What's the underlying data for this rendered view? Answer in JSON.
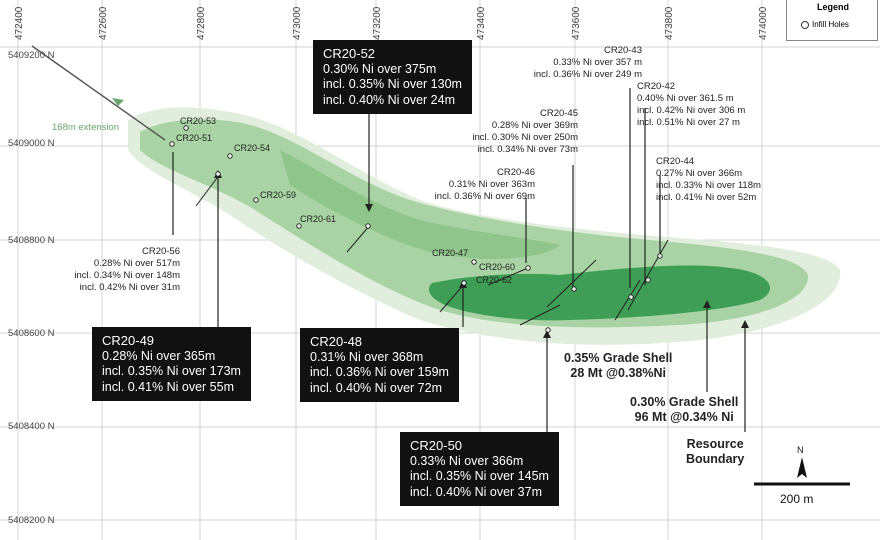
{
  "grid": {
    "x_labels": [
      "472400",
      "472600",
      "472800",
      "473000",
      "473200",
      "473400",
      "473600",
      "473800",
      "474000"
    ],
    "y_labels": [
      "5409200 N",
      "5409000 N",
      "5408800 N",
      "5408600 N",
      "5408400 N",
      "5408200 N"
    ]
  },
  "legend": {
    "title": "Legend",
    "item": "Infill Holes"
  },
  "extension_label": "168m extension",
  "holes": [
    "CR20-53",
    "CR20-51",
    "CR20-54",
    "CR20-59",
    "CR20-61",
    "CR20-47",
    "CR20-60",
    "CR20-62"
  ],
  "annotations": {
    "cr20_56": [
      "CR20-56",
      "0.28% Ni over 517m",
      "incl. 0.34% Ni over 148m",
      "incl. 0.42% Ni over 31m"
    ],
    "cr20_46": [
      "CR20-46",
      "0.31% Ni over 363m",
      "incl. 0.36% Ni over 69m"
    ],
    "cr20_45": [
      "CR20-45",
      "0.28% Ni over 369m",
      "incl. 0.30% Ni over 250m",
      "incl. 0.34% Ni over 73m"
    ],
    "cr20_43": [
      "CR20-43",
      "0.33% Ni over 357 m",
      "incl. 0.36% Ni over 249 m"
    ],
    "cr20_42": [
      "CR20-42",
      "0.40% Ni over 361.5 m",
      "incl. 0.42% Ni over 306 m",
      "incl. 0.51% Ni over 27 m"
    ],
    "cr20_44": [
      "CR20-44",
      "0.27% Ni over 366m",
      "incl. 0.33% Ni over 118m",
      "incl. 0.41% Ni over 52m"
    ]
  },
  "boxes": {
    "cr20_52": [
      "CR20-52",
      "0.30% Ni over 375m",
      "incl. 0.35% Ni over 130m",
      "incl. 0.40% Ni over 24m"
    ],
    "cr20_49": [
      "CR20-49",
      "0.28% Ni over 365m",
      "incl. 0.35% Ni over 173m",
      "incl. 0.41% Ni over 55m"
    ],
    "cr20_48": [
      "CR20-48",
      "0.31% Ni over 368m",
      "incl. 0.36% Ni over 159m",
      "incl. 0.40% Ni over 72m"
    ],
    "cr20_50": [
      "CR20-50",
      "0.33% Ni over 366m",
      "incl. 0.35% Ni over 145m",
      "incl. 0.40% Ni over 37m"
    ]
  },
  "shells": {
    "s035": [
      "0.35% Grade Shell",
      "28 Mt @0.38%Ni"
    ],
    "s030": [
      "0.30% Grade Shell",
      "96 Mt @0.34% Ni"
    ],
    "boundary": [
      "Resource",
      "Boundary"
    ]
  },
  "north": "N",
  "scale": "200 m"
}
